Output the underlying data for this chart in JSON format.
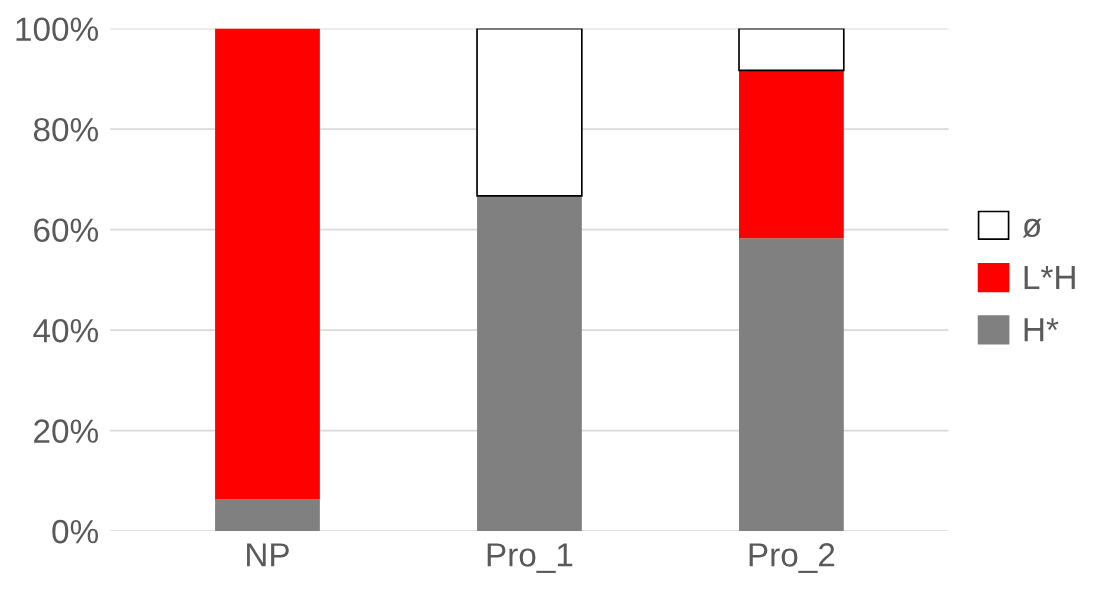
{
  "chart_data": {
    "type": "bar",
    "stacked": true,
    "categories": [
      "NP",
      "Pro_1",
      "Pro_2"
    ],
    "series": [
      {
        "name": "H*",
        "color": "#808080",
        "values": [
          6.3,
          66.7,
          58.3
        ]
      },
      {
        "name": "L*H",
        "color": "#ff0000",
        "values": [
          93.7,
          null,
          33.4
        ]
      },
      {
        "name": "ø",
        "color": "#ffffff",
        "values": [
          null,
          33.3,
          8.3
        ]
      }
    ],
    "ylim": [
      0,
      100
    ],
    "yticks": [
      {
        "value": 0,
        "label": "0%"
      },
      {
        "value": 20,
        "label": "20%"
      },
      {
        "value": 40,
        "label": "40%"
      },
      {
        "value": 60,
        "label": "60%"
      },
      {
        "value": 80,
        "label": "80%"
      },
      {
        "value": 100,
        "label": "100%"
      }
    ],
    "grid": "y",
    "legend": "right"
  }
}
